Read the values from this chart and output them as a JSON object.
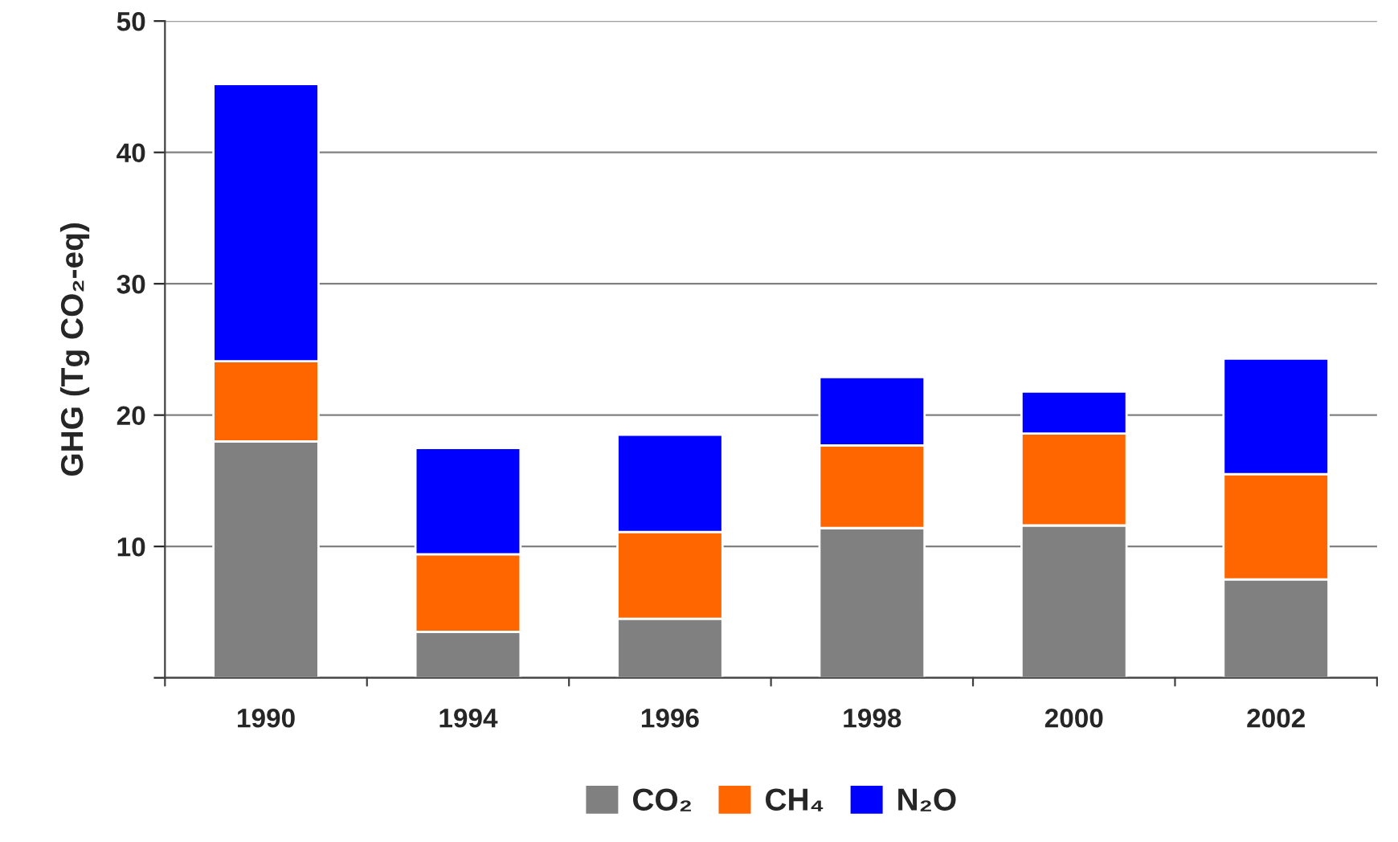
{
  "chart_data": {
    "type": "bar",
    "stacked": true,
    "ylabel": "GHG (Tg CO₂-eq)",
    "categories": [
      "1990",
      "1994",
      "1996",
      "1998",
      "2000",
      "2002"
    ],
    "series": [
      {
        "name": "CO₂",
        "color": "#808080",
        "values": [
          18.0,
          3.5,
          4.5,
          11.4,
          11.6,
          7.5
        ]
      },
      {
        "name": "CH₄",
        "color": "#ff6600",
        "values": [
          6.1,
          5.9,
          6.6,
          6.3,
          7.0,
          8.0
        ]
      },
      {
        "name": "N₂O",
        "color": "#0000ff",
        "values": [
          21.1,
          8.1,
          7.4,
          5.2,
          3.2,
          8.8
        ]
      }
    ],
    "ylim": [
      0,
      50
    ],
    "yticks": [
      {
        "value": 0,
        "label": null
      },
      10,
      20,
      30,
      40,
      50
    ],
    "grid": "y",
    "legend": "bottom"
  }
}
